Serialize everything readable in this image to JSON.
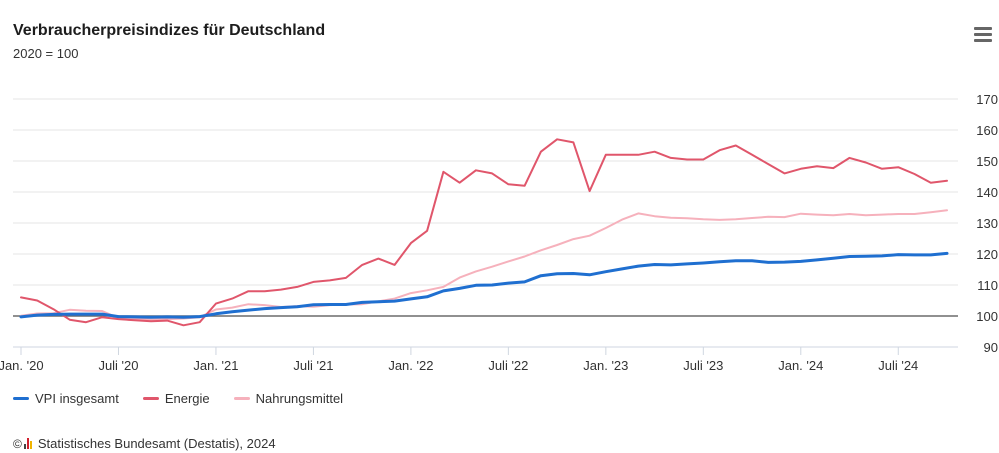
{
  "header": {
    "title": "Verbraucherpreisindizes für Deutschland",
    "subtitle": "2020 = 100",
    "menu_icon": "hamburger-menu-icon"
  },
  "credits": {
    "copyright_symbol": "©",
    "text": "Statistisches Bundesamt (Destatis), 2024",
    "logo_icon": "destatis-logo-icon"
  },
  "chart_data": {
    "type": "line",
    "title": "Verbraucherpreisindizes für Deutschland",
    "subtitle": "2020 = 100",
    "xlabel": "",
    "ylabel": "",
    "ylim": [
      90,
      170
    ],
    "y_ticks": [
      90,
      100,
      110,
      120,
      130,
      140,
      150,
      160,
      170
    ],
    "reference_line": 100,
    "grid": "horizontal",
    "legend_position": "bottom-left",
    "x_tick_labels": [
      {
        "label": "Jan. '20",
        "index": 0
      },
      {
        "label": "Juli '20",
        "index": 6
      },
      {
        "label": "Jan. '21",
        "index": 12
      },
      {
        "label": "Juli '21",
        "index": 18
      },
      {
        "label": "Jan. '22",
        "index": 24
      },
      {
        "label": "Juli '22",
        "index": 30
      },
      {
        "label": "Jan. '23",
        "index": 36
      },
      {
        "label": "Juli '23",
        "index": 42
      },
      {
        "label": "Jan. '24",
        "index": 48
      },
      {
        "label": "Juli '24",
        "index": 54
      }
    ],
    "x": [
      "2020-01",
      "2020-02",
      "2020-03",
      "2020-04",
      "2020-05",
      "2020-06",
      "2020-07",
      "2020-08",
      "2020-09",
      "2020-10",
      "2020-11",
      "2020-12",
      "2021-01",
      "2021-02",
      "2021-03",
      "2021-04",
      "2021-05",
      "2021-06",
      "2021-07",
      "2021-08",
      "2021-09",
      "2021-10",
      "2021-11",
      "2021-12",
      "2022-01",
      "2022-02",
      "2022-03",
      "2022-04",
      "2022-05",
      "2022-06",
      "2022-07",
      "2022-08",
      "2022-09",
      "2022-10",
      "2022-11",
      "2022-12",
      "2023-01",
      "2023-02",
      "2023-03",
      "2023-04",
      "2023-05",
      "2023-06",
      "2023-07",
      "2023-08",
      "2023-09",
      "2023-10",
      "2023-11",
      "2023-12",
      "2024-01",
      "2024-02",
      "2024-03",
      "2024-04",
      "2024-05",
      "2024-06",
      "2024-07",
      "2024-08",
      "2024-09",
      "2024-10"
    ],
    "series": [
      {
        "name": "VPI insgesamt",
        "color": "#1f6fd0",
        "width": 3,
        "values": [
          99.7,
          100.3,
          100.5,
          100.6,
          100.6,
          100.6,
          99.8,
          99.7,
          99.6,
          99.7,
          99.6,
          99.8,
          100.7,
          101.4,
          101.9,
          102.4,
          102.7,
          103.0,
          103.6,
          103.7,
          103.7,
          104.4,
          104.6,
          104.8,
          105.5,
          106.2,
          108.1,
          108.9,
          109.9,
          110.0,
          110.6,
          111.0,
          113.0,
          113.6,
          113.7,
          113.3,
          114.3,
          115.2,
          116.1,
          116.6,
          116.5,
          116.8,
          117.1,
          117.5,
          117.8,
          117.8,
          117.3,
          117.4,
          117.6,
          118.1,
          118.6,
          119.2,
          119.3,
          119.4,
          119.8,
          119.7,
          119.7,
          120.2
        ]
      },
      {
        "name": "Energie",
        "color": "#e0566b",
        "width": 2,
        "values": [
          106.0,
          105.0,
          102.2,
          98.8,
          98.0,
          99.6,
          99.0,
          98.6,
          98.3,
          98.5,
          97.0,
          98.0,
          104.0,
          105.6,
          108.0,
          108.0,
          108.5,
          109.4,
          111.0,
          111.5,
          112.3,
          116.5,
          118.5,
          116.5,
          123.5,
          127.5,
          146.5,
          143.0,
          147.0,
          146.0,
          142.5,
          142.0,
          153.0,
          157.0,
          156.0,
          140.3,
          152.0,
          152.0,
          152.0,
          153.0,
          151.0,
          150.5,
          150.5,
          153.5,
          155.0,
          152.0,
          149.0,
          146.0,
          147.5,
          148.3,
          147.7,
          151.0,
          149.5,
          147.5,
          148.0,
          145.8,
          143.0,
          143.6
        ]
      },
      {
        "name": "Nahrungsmittel",
        "color": "#f6b1bc",
        "width": 2,
        "values": [
          100.1,
          100.8,
          100.9,
          102.0,
          101.7,
          101.6,
          99.3,
          99.2,
          98.8,
          99.0,
          99.2,
          99.6,
          102.1,
          102.7,
          103.8,
          103.5,
          102.9,
          103.2,
          103.0,
          103.5,
          103.7,
          103.8,
          104.7,
          105.6,
          107.4,
          108.3,
          109.4,
          112.4,
          114.4,
          115.9,
          117.6,
          119.2,
          121.2,
          122.9,
          124.8,
          125.9,
          128.4,
          131.1,
          133.1,
          132.2,
          131.7,
          131.5,
          131.2,
          131.0,
          131.2,
          131.6,
          132.0,
          131.9,
          133.0,
          132.7,
          132.5,
          132.9,
          132.5,
          132.7,
          132.9,
          132.9,
          133.5,
          134.1
        ]
      }
    ]
  }
}
